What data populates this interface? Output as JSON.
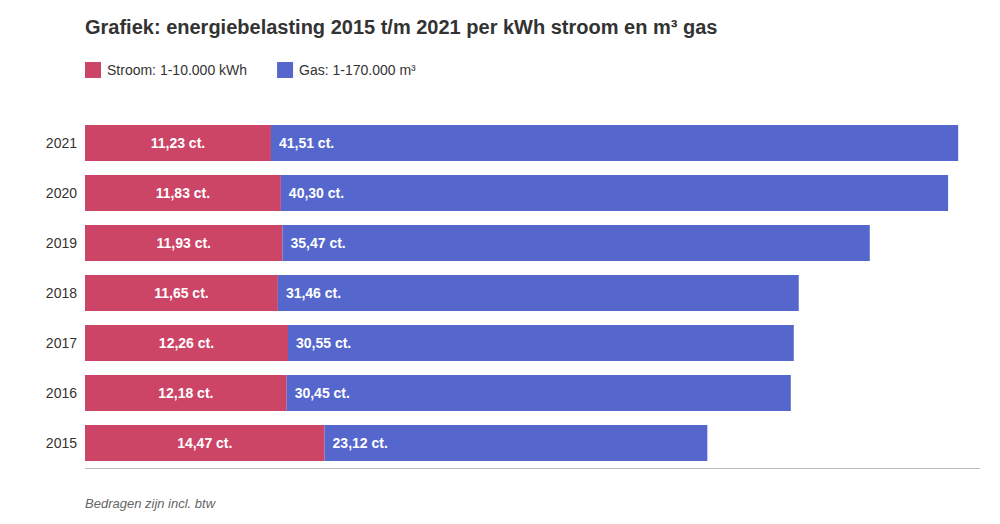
{
  "chart_data": {
    "type": "bar",
    "orientation": "horizontal",
    "stacked": true,
    "data_labels": true,
    "tick_labels": "y",
    "grid": false,
    "title": "Grafiek: energiebelasting 2015 t/m 2021 per kWh stroom en m³ gas",
    "annotations": [
      "Bedragen zijn incl. btw"
    ],
    "categories": [
      "2021",
      "2020",
      "2019",
      "2018",
      "2017",
      "2016",
      "2015"
    ],
    "xlim": [
      0,
      54.0585
    ],
    "series": [
      {
        "name": "Stroom: 1-10.000 kWh",
        "color": "#cc4466",
        "values": [
          11.23,
          11.83,
          11.93,
          11.65,
          12.26,
          12.18,
          14.47
        ],
        "value_labels": [
          "11,23 ct.",
          "11,83 ct.",
          "11,93 ct.",
          "11,65 ct.",
          "12,26 ct.",
          "12,18 ct.",
          "14,47 ct."
        ]
      },
      {
        "name": "Gas: 1-170.000 m³",
        "color": "#5566cc",
        "values": [
          41.51,
          40.3,
          35.47,
          31.46,
          30.55,
          30.45,
          23.12
        ],
        "value_labels": [
          "41,51 ct.",
          "40,30 ct.",
          "35,47 ct.",
          "31,46 ct.",
          "30,55 ct.",
          "30,45 ct.",
          "23,12 ct."
        ]
      }
    ]
  }
}
